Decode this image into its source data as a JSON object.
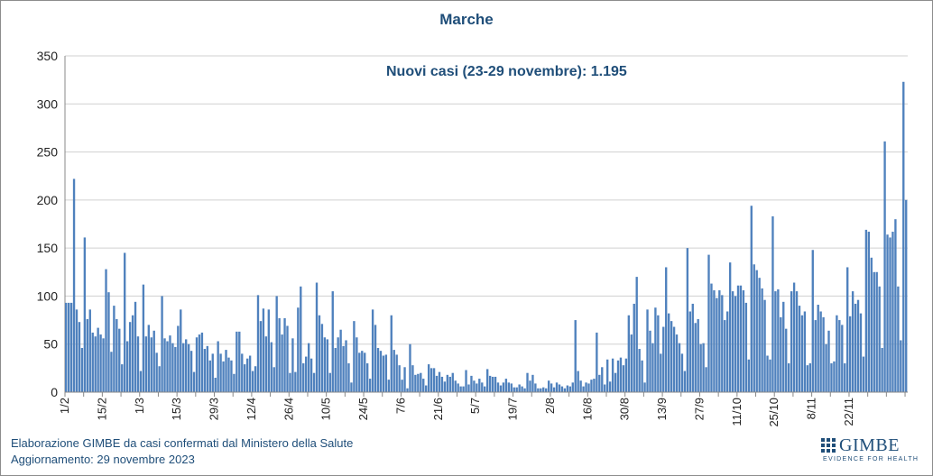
{
  "chart_data": {
    "type": "bar",
    "title": "Marche",
    "annotation": "Nuovi casi (23-29 novembre): 1.195",
    "xlabel": "",
    "ylabel": "",
    "ylim": [
      0,
      350
    ],
    "yticks": [
      0,
      50,
      100,
      150,
      200,
      250,
      300,
      350
    ],
    "grid": "horizontal",
    "color": "#4f81bd",
    "x_tick_labels": [
      "1/2",
      "15/2",
      "1/3",
      "15/3",
      "29/3",
      "12/4",
      "26/4",
      "10/5",
      "24/5",
      "7/6",
      "21/6",
      "5/7",
      "19/7",
      "2/8",
      "16/8",
      "30/8",
      "13/9",
      "27/9",
      "11/10",
      "25/10",
      "8/11",
      "22/11"
    ],
    "start_date": "1/2",
    "values": [
      93,
      93,
      93,
      222,
      86,
      73,
      46,
      161,
      76,
      86,
      62,
      58,
      67,
      60,
      56,
      128,
      104,
      42,
      90,
      76,
      66,
      29,
      145,
      53,
      73,
      80,
      94,
      58,
      22,
      112,
      58,
      70,
      57,
      64,
      41,
      27,
      100,
      56,
      53,
      59,
      51,
      47,
      69,
      86,
      51,
      55,
      50,
      43,
      21,
      57,
      60,
      62,
      45,
      48,
      33,
      40,
      15,
      53,
      40,
      32,
      44,
      36,
      33,
      19,
      63,
      63,
      40,
      29,
      35,
      38,
      22,
      27,
      101,
      74,
      87,
      58,
      86,
      52,
      26,
      100,
      77,
      60,
      77,
      69,
      20,
      56,
      21,
      88,
      110,
      30,
      37,
      51,
      35,
      20,
      114,
      80,
      71,
      57,
      55,
      20,
      105,
      46,
      57,
      65,
      48,
      54,
      30,
      10,
      74,
      57,
      41,
      43,
      41,
      30,
      14,
      86,
      70,
      46,
      43,
      38,
      39,
      13,
      80,
      44,
      39,
      28,
      13,
      26,
      4,
      50,
      28,
      18,
      19,
      20,
      14,
      7,
      29,
      25,
      25,
      17,
      21,
      16,
      11,
      18,
      16,
      20,
      12,
      9,
      6,
      6,
      23,
      8,
      17,
      12,
      9,
      14,
      10,
      6,
      24,
      17,
      16,
      16,
      10,
      7,
      10,
      14,
      10,
      9,
      5,
      5,
      8,
      6,
      4,
      20,
      12,
      18,
      9,
      4,
      4,
      5,
      4,
      12,
      9,
      5,
      10,
      8,
      6,
      4,
      7,
      6,
      10,
      75,
      22,
      12,
      6,
      10,
      9,
      13,
      14,
      62,
      18,
      26,
      8,
      34,
      11,
      35,
      20,
      33,
      36,
      28,
      35,
      80,
      60,
      92,
      120,
      45,
      33,
      10,
      86,
      64,
      51,
      88,
      80,
      40,
      68,
      130,
      82,
      74,
      68,
      60,
      51,
      40,
      22,
      150,
      84,
      92,
      72,
      76,
      50,
      51,
      26,
      143,
      113,
      106,
      98,
      106,
      101,
      75,
      84,
      135,
      105,
      100,
      111,
      111,
      106,
      93,
      34,
      194,
      133,
      127,
      119,
      108,
      96,
      38,
      34,
      183,
      105,
      107,
      78,
      94,
      66,
      30,
      105,
      114,
      105,
      90,
      80,
      84,
      28,
      30,
      148,
      75,
      91,
      84,
      78,
      50,
      64,
      30,
      32,
      80,
      75,
      70,
      30,
      130,
      79,
      105,
      92,
      96,
      82,
      37,
      169,
      167,
      140,
      125,
      125,
      110,
      46,
      261,
      164,
      161,
      167,
      180,
      110,
      54,
      323,
      200
    ]
  },
  "footer": {
    "line1": "Elaborazione GIMBE da casi confermati dal Ministero della Salute",
    "line2": "Aggiornamento: 29 novembre 2023"
  },
  "logo": {
    "word": "GIMBE",
    "tagline": "EVIDENCE FOR HEALTH"
  }
}
